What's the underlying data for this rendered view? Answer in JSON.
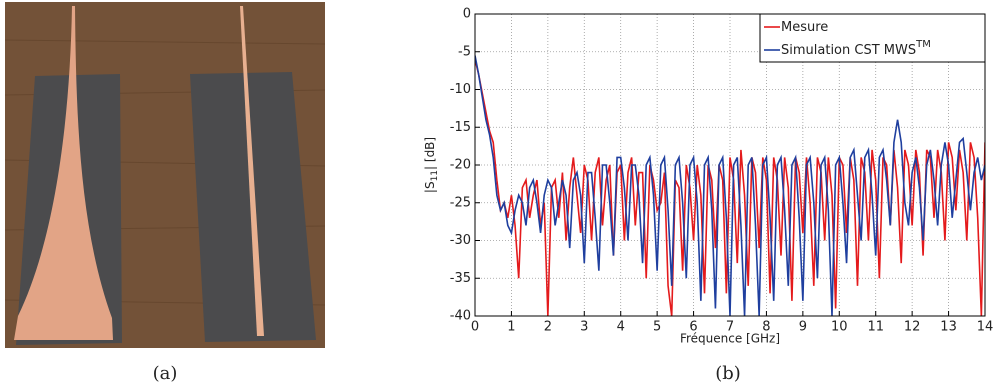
{
  "caption_a": "(a)",
  "chart_data": {
    "type": "line",
    "caption": "(b)",
    "xlabel": "Fréquence [GHz]",
    "ylabel": {
      "text": "|S",
      "sub": "11",
      "after": "| [dB]"
    },
    "x": [
      0,
      0.1,
      0.2,
      0.3,
      0.4,
      0.5,
      0.6,
      0.7,
      0.8,
      0.9,
      1,
      1.1,
      1.2,
      1.3,
      1.4,
      1.5,
      1.6,
      1.7,
      1.8,
      1.9,
      2,
      2.1,
      2.2,
      2.3,
      2.4,
      2.5,
      2.6,
      2.7,
      2.8,
      2.9,
      3,
      3.1,
      3.2,
      3.3,
      3.4,
      3.5,
      3.6,
      3.7,
      3.8,
      3.9,
      4,
      4.1,
      4.2,
      4.3,
      4.4,
      4.5,
      4.6,
      4.7,
      4.8,
      4.9,
      5,
      5.1,
      5.2,
      5.3,
      5.4,
      5.5,
      5.6,
      5.7,
      5.8,
      5.9,
      6,
      6.1,
      6.2,
      6.3,
      6.4,
      6.5,
      6.6,
      6.7,
      6.8,
      6.9,
      7,
      7.1,
      7.2,
      7.3,
      7.4,
      7.5,
      7.6,
      7.7,
      7.8,
      7.9,
      8,
      8.1,
      8.2,
      8.3,
      8.4,
      8.5,
      8.6,
      8.7,
      8.8,
      8.9,
      9,
      9.1,
      9.2,
      9.3,
      9.4,
      9.5,
      9.6,
      9.7,
      9.8,
      9.9,
      10,
      10.1,
      10.2,
      10.3,
      10.4,
      10.5,
      10.6,
      10.7,
      10.8,
      10.9,
      11,
      11.1,
      11.2,
      11.3,
      11.4,
      11.5,
      11.6,
      11.7,
      11.8,
      11.9,
      12,
      12.1,
      12.2,
      12.3,
      12.4,
      12.5,
      12.6,
      12.7,
      12.8,
      12.9,
      13,
      13.1,
      13.2,
      13.3,
      13.4,
      13.5,
      13.6,
      13.7,
      13.8,
      13.9,
      14
    ],
    "series": [
      {
        "name": "Mesure",
        "color": "#e41a1c",
        "values": [
          -6,
          -8,
          -10.5,
          -13,
          -15.5,
          -17,
          -22,
          -26,
          -25,
          -27,
          -24,
          -28,
          -35,
          -23,
          -22,
          -27,
          -24,
          -22,
          -28,
          -25,
          -40,
          -23,
          -22,
          -27,
          -21,
          -30,
          -23,
          -19,
          -24,
          -29,
          -20,
          -22,
          -30,
          -21,
          -19,
          -28,
          -22,
          -20,
          -32,
          -21,
          -20,
          -30,
          -21,
          -19,
          -28,
          -21,
          -21,
          -35,
          -20,
          -22,
          -26,
          -25,
          -21,
          -36,
          -40,
          -22,
          -23,
          -34,
          -20,
          -23,
          -30,
          -20,
          -24,
          -37,
          -20,
          -22,
          -31,
          -20,
          -22,
          -37,
          -19,
          -22,
          -33,
          -18,
          -24,
          -36,
          -19,
          -21,
          -31,
          -19,
          -22,
          -37,
          -19,
          -22,
          -32,
          -19,
          -23,
          -38,
          -19,
          -21,
          -29,
          -19,
          -25,
          -36,
          -19,
          -21,
          -30,
          -19,
          -24,
          -39,
          -19,
          -20,
          -29,
          -19,
          -22,
          -36,
          -19,
          -21,
          -30,
          -18,
          -22,
          -35,
          -19,
          -20,
          -28,
          -18,
          -23,
          -33,
          -18,
          -20,
          -28,
          -18,
          -21,
          -32,
          -18,
          -19,
          -27,
          -18,
          -21,
          -30,
          -17,
          -19,
          -26,
          -18,
          -21,
          -30,
          -17,
          -19,
          -27,
          -40,
          -17
        ]
      },
      {
        "name": "Simulation CST MWS",
        "superscript": "TM",
        "color": "#1f3f9f",
        "values": [
          -5.5,
          -8,
          -11,
          -14,
          -16,
          -19,
          -24,
          -26,
          -25,
          -28,
          -29,
          -26,
          -24,
          -25,
          -28,
          -23,
          -22,
          -25,
          -29,
          -24,
          -22,
          -23,
          -28,
          -25,
          -22,
          -24,
          -31,
          -22,
          -21,
          -24,
          -33,
          -21,
          -21,
          -27,
          -34,
          -20,
          -20,
          -25,
          -32,
          -19,
          -19,
          -23,
          -30,
          -20,
          -20,
          -24,
          -33,
          -20,
          -19,
          -24,
          -34,
          -20,
          -19,
          -26,
          -36,
          -20,
          -19,
          -25,
          -35,
          -20,
          -19,
          -25,
          -38,
          -20,
          -19,
          -26,
          -39,
          -20,
          -19,
          -27,
          -40,
          -20,
          -19,
          -28,
          -40,
          -20,
          -19,
          -28,
          -40,
          -20,
          -19,
          -27,
          -38,
          -20,
          -19,
          -26,
          -36,
          -20,
          -19,
          -27,
          -38,
          -20,
          -19,
          -25,
          -35,
          -20,
          -19,
          -26,
          -40,
          -20,
          -19,
          -25,
          -33,
          -19,
          -18,
          -24,
          -30,
          -19,
          -18,
          -24,
          -32,
          -19,
          -18,
          -22,
          -28,
          -17,
          -14,
          -17,
          -25,
          -28,
          -21,
          -19,
          -23,
          -30,
          -20,
          -18,
          -22,
          -28,
          -20,
          -17,
          -20,
          -27,
          -22,
          -17,
          -16.5,
          -21,
          -26,
          -21,
          -19,
          -22,
          -20
        ]
      }
    ],
    "xlim": [
      0,
      14
    ],
    "ylim": [
      -40,
      0
    ],
    "xticks": [
      0,
      1,
      2,
      3,
      4,
      5,
      6,
      7,
      8,
      9,
      10,
      11,
      12,
      13,
      14
    ],
    "yticks": [
      0,
      -5,
      -10,
      -15,
      -20,
      -25,
      -30,
      -35,
      -40
    ],
    "grid": true,
    "legend": "upper-right"
  }
}
